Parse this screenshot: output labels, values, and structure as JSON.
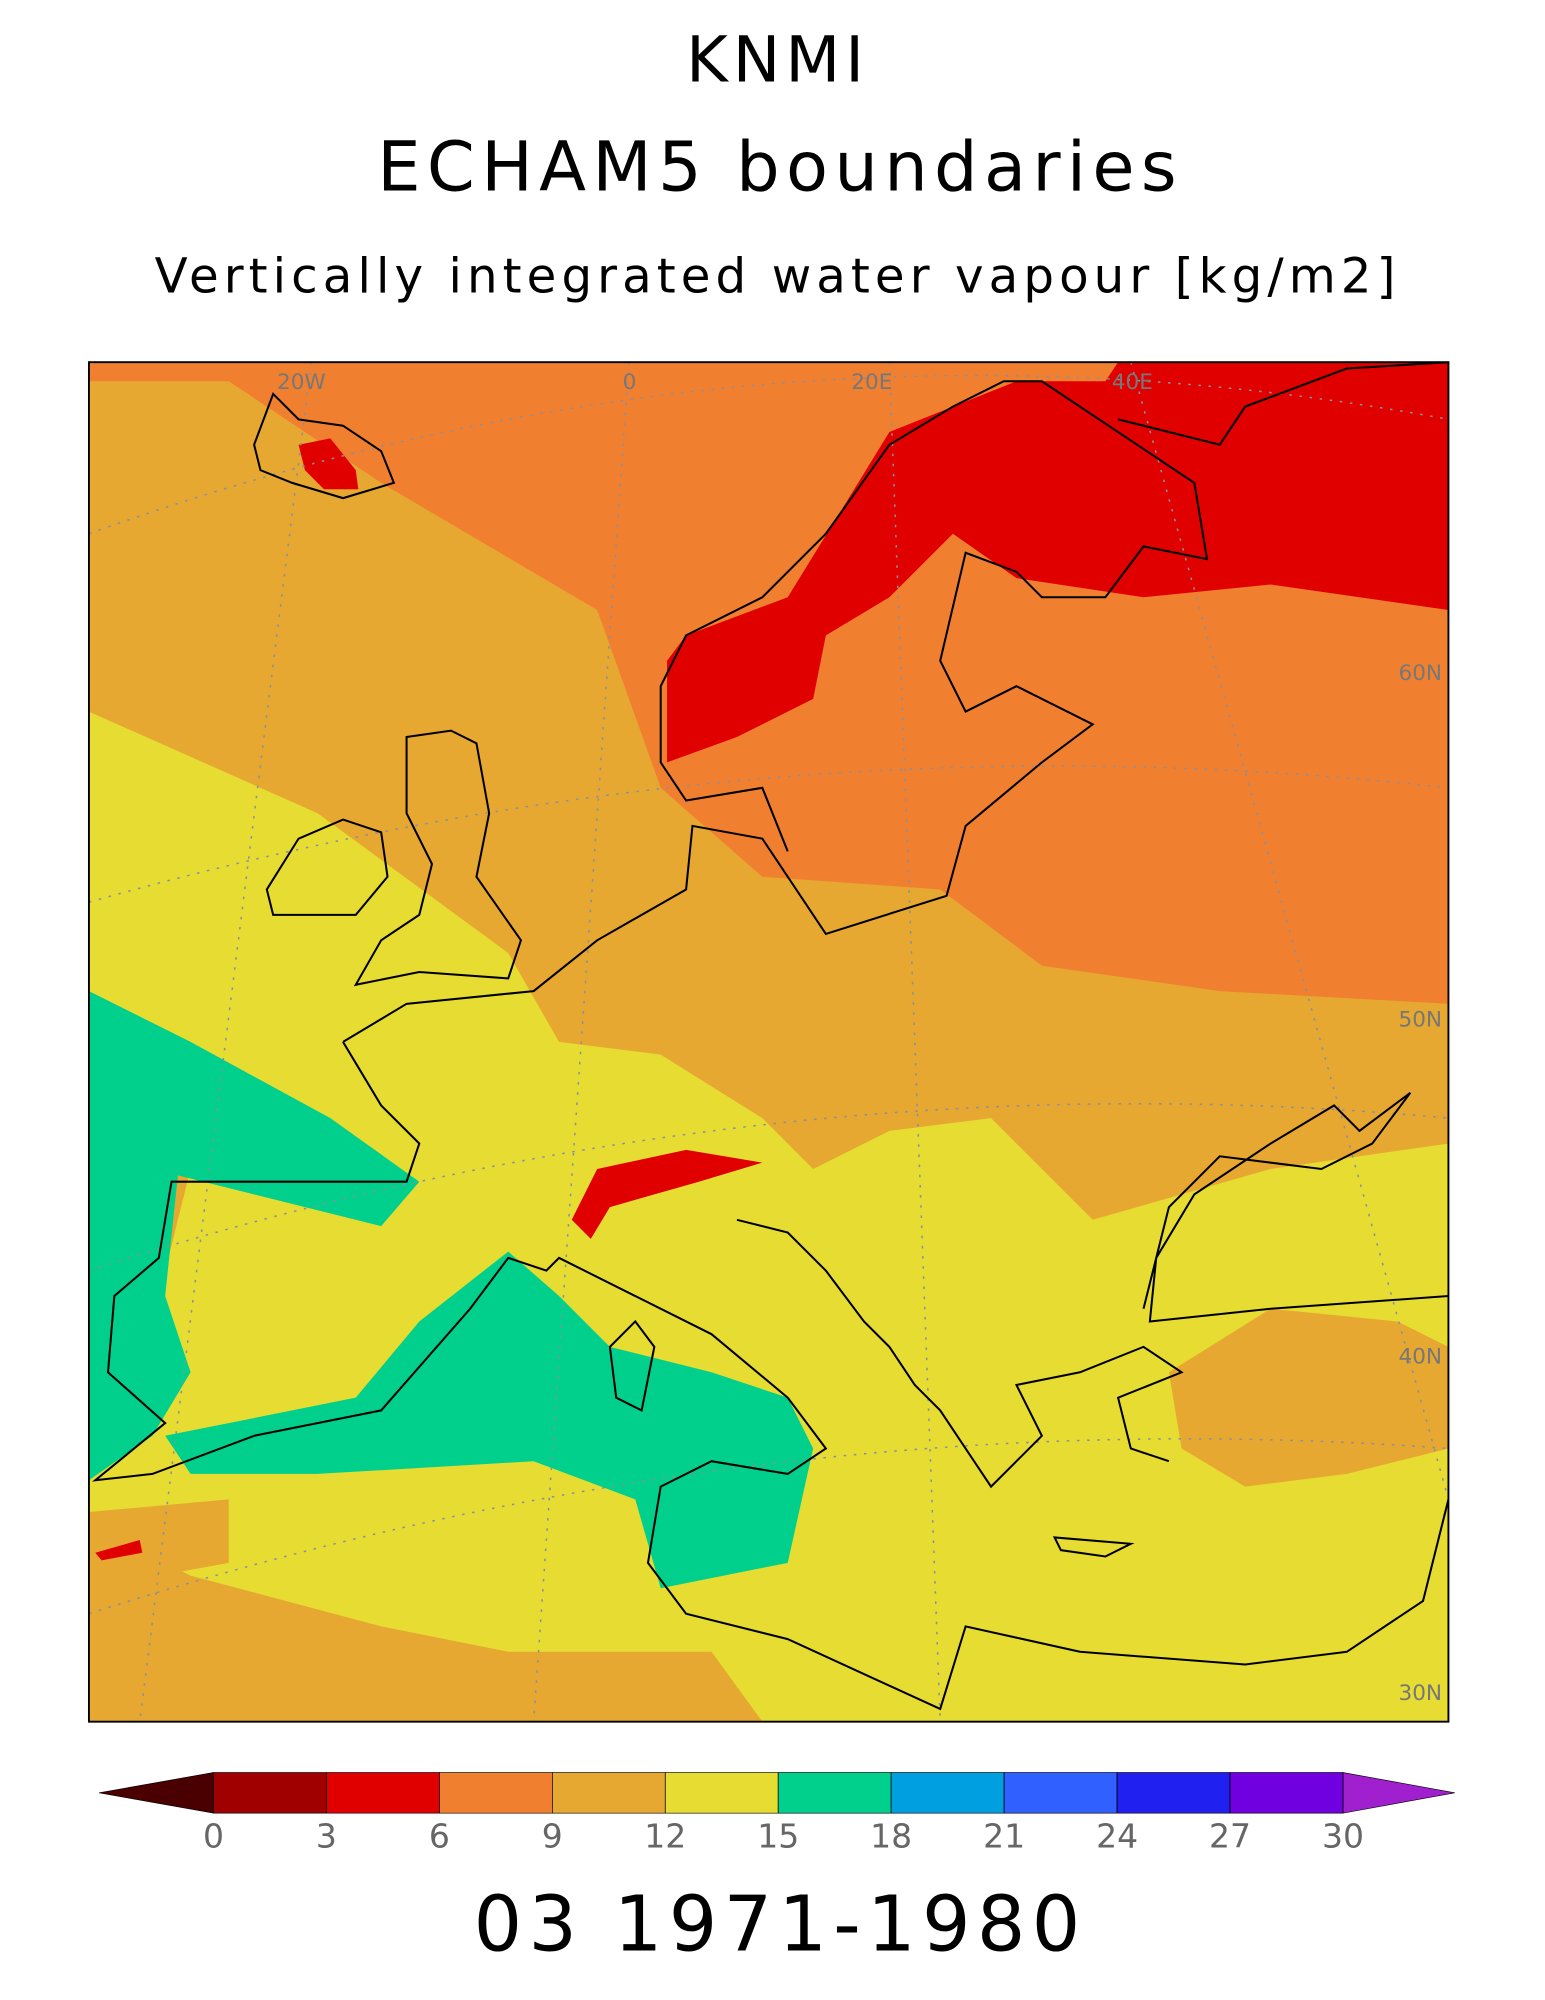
{
  "title": "KNMI",
  "subtitle": "ECHAM5 boundaries",
  "variable": "Vertically integrated water vapour [kg/m2]",
  "map": {
    "lon_labels": [
      "20W",
      "0",
      "20E",
      "40E"
    ],
    "lat_labels": [
      "60N",
      "50N",
      "40N",
      "30N"
    ]
  },
  "colorbar": {
    "ticks": [
      0,
      3,
      6,
      9,
      12,
      15,
      18,
      21,
      24,
      27,
      30
    ],
    "under_color": "#4a0000",
    "over_color": "#a020d0",
    "colors": [
      "#a00000",
      "#e00000",
      "#f08030",
      "#e6a830",
      "#e6dc32",
      "#00d08c",
      "#00a0e0",
      "#3060ff",
      "#2020f0",
      "#7000e0"
    ]
  },
  "footer": "03 1971-1980"
}
